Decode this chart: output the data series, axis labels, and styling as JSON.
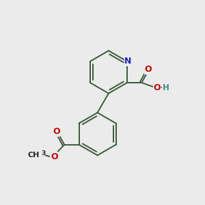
{
  "background_color": "#ebebeb",
  "bond_color": "#3a5a3a",
  "N_color": "#2020cc",
  "O_color": "#cc0000",
  "H_color": "#448888",
  "figsize": [
    3.0,
    3.0
  ],
  "dpi": 100,
  "xlim": [
    0,
    10
  ],
  "ylim": [
    0,
    10
  ]
}
